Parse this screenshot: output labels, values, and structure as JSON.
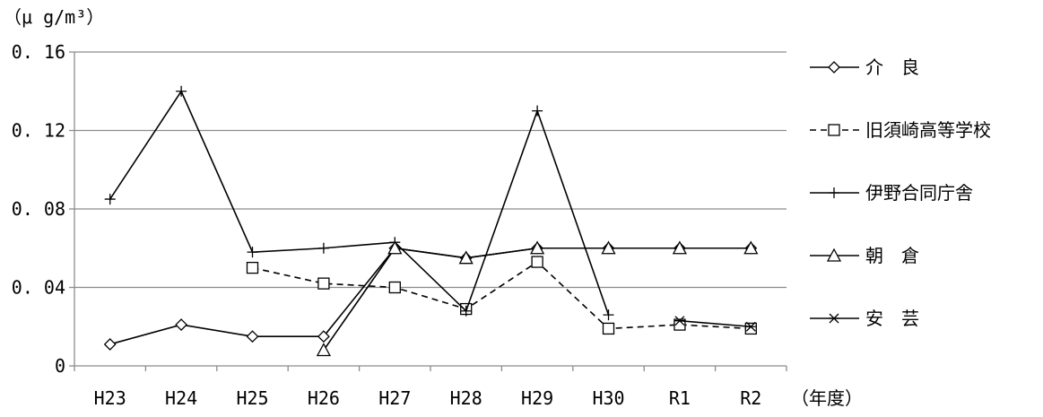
{
  "chart_data": {
    "type": "line",
    "ylabel": "（μ g/m³）",
    "xlabel": "（年度）",
    "categories": [
      "H23",
      "H24",
      "H25",
      "H26",
      "H27",
      "H28",
      "H29",
      "H30",
      "R1",
      "R2"
    ],
    "yticks": [
      "0",
      "0. 04",
      "0. 08",
      "0. 12",
      "0. 16"
    ],
    "ylim": [
      0,
      0.16
    ],
    "grid": true,
    "legend_position": "right",
    "series": [
      {
        "name": "介　良",
        "marker": "diamond",
        "dash": "solid",
        "values": [
          0.011,
          0.021,
          0.015,
          0.015,
          0.06,
          0.055,
          0.06,
          0.06,
          0.06,
          0.06
        ]
      },
      {
        "name": "旧須崎高等学校",
        "marker": "square",
        "dash": "dashed",
        "values": [
          null,
          null,
          0.05,
          0.042,
          0.04,
          0.029,
          0.053,
          0.019,
          0.021,
          0.019
        ]
      },
      {
        "name": "伊野合同庁舎",
        "marker": "plus",
        "dash": "solid",
        "values": [
          0.085,
          0.14,
          0.058,
          0.06,
          0.063,
          0.028,
          0.13,
          0.026,
          null,
          null
        ]
      },
      {
        "name": "朝　倉",
        "marker": "triangle",
        "dash": "solid",
        "values": [
          null,
          null,
          null,
          0.008,
          0.06,
          0.055,
          0.06,
          0.06,
          0.06,
          0.06
        ]
      },
      {
        "name": "安　芸",
        "marker": "asterisk",
        "dash": "solid",
        "values": [
          null,
          null,
          null,
          null,
          null,
          null,
          null,
          null,
          0.023,
          0.02
        ]
      }
    ]
  }
}
